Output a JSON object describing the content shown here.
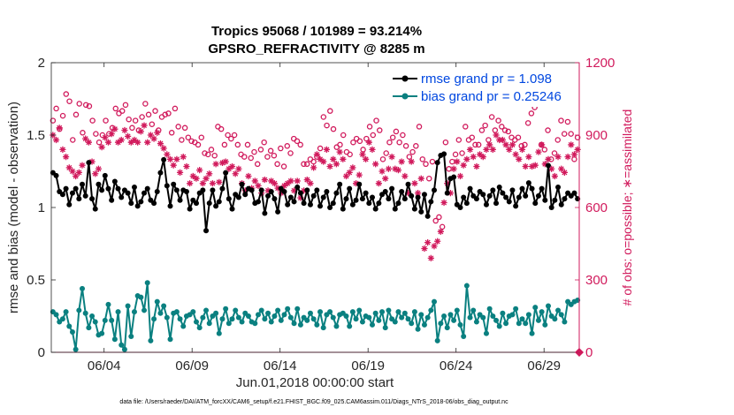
{
  "chart_data": {
    "type": "line",
    "title_line1": "Tropics 95068 / 101989 = 93.214%",
    "title_line2": "GPSRO_REFRACTIVITY @ 8285 m",
    "xlabel": "Jun.01,2018 00:00:00 start",
    "ylabel": "rmse and bias (model - observation)",
    "y2label": "# of obs: o=possible; ∗=assimilated",
    "ylim": [
      0,
      2
    ],
    "y2lim": [
      0,
      1200
    ],
    "xlim": [
      1.0,
      31.0
    ],
    "x_ticks": [
      4,
      9,
      14,
      19,
      24,
      29
    ],
    "x_tick_labels": [
      "06/04",
      "06/09",
      "06/14",
      "06/19",
      "06/24",
      "06/29"
    ],
    "y_ticks": [
      0,
      0.5,
      1,
      1.5,
      2
    ],
    "y_tick_labels": [
      "0",
      "0.5",
      "1",
      "1.5",
      "2"
    ],
    "y2_ticks": [
      0,
      300,
      600,
      900,
      1200
    ],
    "y2_tick_labels": [
      "0",
      "300",
      "600",
      "900",
      "1200"
    ],
    "footnote": "data file: /Users/raeder/DAI/ATM_forcXX/CAM6_setup/f.e21.FHIST_BGC.f09_025.CAM6assim.011/Diags_NTrS_2018-06/obs_diag_output.nc",
    "colors": {
      "rmse": "#000000",
      "bias": "#0a8080",
      "obs": "#d11a5c",
      "legend_text": "#0047e0"
    },
    "series": [
      {
        "name": "rmse grand pr = 1.098",
        "axis": "left",
        "values": [
          1.24,
          1.22,
          1.11,
          1.09,
          1.13,
          1.02,
          1.1,
          1.13,
          1.06,
          1.16,
          1.08,
          1.31,
          1.06,
          0.99,
          1.16,
          1.12,
          1.22,
          1.13,
          1.05,
          1.18,
          1.13,
          1.07,
          1.12,
          1.1,
          1.03,
          1.14,
          1.01,
          1.04,
          1.1,
          1.13,
          1.05,
          1.03,
          1.11,
          1.24,
          1.33,
          1.15,
          1.01,
          1.16,
          1.12,
          1.05,
          1.12,
          1.11,
          0.99,
          1.05,
          1.03,
          1.1,
          1.12,
          0.84,
          1.03,
          1.12,
          1.01,
          1.04,
          1.13,
          1.24,
          1.06,
          0.99,
          1.09,
          1.07,
          1.16,
          1.09,
          1.13,
          1.12,
          1.03,
          1.04,
          1.12,
          0.96,
          1.08,
          1.11,
          1.06,
          0.97,
          1.13,
          1.11,
          1.02,
          1.07,
          1.04,
          1.14,
          1.1,
          1.03,
          1.12,
          1.02,
          1.08,
          1.12,
          1.01,
          1.07,
          1.11,
          1.0,
          1.03,
          1.1,
          1.16,
          0.99,
          1.06,
          1.13,
          1.02,
          1.05,
          1.16,
          1.06,
          1.1,
          1.03,
          1.07,
          0.99,
          1.03,
          1.09,
          1.11,
          1.06,
          1.13,
          0.99,
          1.03,
          1.11,
          1.06,
          1.16,
          1.08,
          0.99,
          1.07,
          0.97,
          1.09,
          0.94,
          1.04,
          1.12,
          1.31,
          1.36,
          1.37,
          1.1,
          1.2,
          1.21,
          1.02,
          1.0,
          1.07,
          1.03,
          1.13,
          1.08,
          1.06,
          1.11,
          1.09,
          1.02,
          1.08,
          1.12,
          1.03,
          1.14,
          1.1,
          1.07,
          1.04,
          1.12,
          1.01,
          1.07,
          1.13,
          1.08,
          1.17,
          1.13,
          1.03,
          1.08,
          1.13,
          1.05,
          1.29,
          1.0,
          1.05,
          1.14,
          1.02,
          1.06,
          1.1,
          1.08,
          1.1,
          1.06
        ]
      },
      {
        "name": "bias grand pr = 0.25246",
        "axis": "left",
        "values": [
          0.28,
          0.26,
          0.21,
          0.23,
          0.28,
          0.18,
          0.14,
          0.02,
          0.29,
          0.44,
          0.27,
          0.17,
          0.25,
          0.21,
          0.12,
          0.13,
          0.22,
          0.33,
          0.22,
          0.09,
          0.28,
          0.05,
          0.02,
          0.32,
          0.11,
          0.28,
          0.39,
          0.38,
          0.29,
          0.48,
          0.08,
          0.23,
          0.35,
          0.27,
          0.32,
          0.24,
          0.09,
          0.27,
          0.28,
          0.23,
          0.18,
          0.25,
          0.26,
          0.28,
          0.21,
          0.17,
          0.24,
          0.29,
          0.2,
          0.25,
          0.27,
          0.13,
          0.23,
          0.3,
          0.2,
          0.23,
          0.29,
          0.24,
          0.21,
          0.27,
          0.25,
          0.21,
          0.2,
          0.26,
          0.29,
          0.23,
          0.27,
          0.21,
          0.25,
          0.29,
          0.22,
          0.26,
          0.3,
          0.24,
          0.2,
          0.3,
          0.19,
          0.24,
          0.22,
          0.27,
          0.23,
          0.19,
          0.28,
          0.17,
          0.26,
          0.28,
          0.24,
          0.18,
          0.26,
          0.27,
          0.25,
          0.18,
          0.28,
          0.23,
          0.29,
          0.21,
          0.25,
          0.24,
          0.19,
          0.27,
          0.22,
          0.28,
          0.17,
          0.29,
          0.23,
          0.21,
          0.28,
          0.24,
          0.27,
          0.23,
          0.2,
          0.28,
          0.16,
          0.26,
          0.19,
          0.24,
          0.29,
          0.35,
          0.08,
          0.2,
          0.25,
          0.17,
          0.26,
          0.22,
          0.29,
          0.19,
          0.11,
          0.46,
          0.24,
          0.29,
          0.21,
          0.26,
          0.24,
          0.13,
          0.3,
          0.25,
          0.22,
          0.18,
          0.27,
          0.2,
          0.25,
          0.26,
          0.3,
          0.2,
          0.23,
          0.2,
          0.26,
          0.13,
          0.31,
          0.22,
          0.28,
          0.19,
          0.32,
          0.25,
          0.23,
          0.29,
          0.26,
          0.21,
          0.35,
          0.33,
          0.35,
          0.36
        ]
      },
      {
        "name": "obs possible",
        "axis": "right",
        "marker": "circle",
        "values": [
          960,
          1010,
          925,
          980,
          1070,
          1040,
          880,
          985,
          1030,
          910,
          1025,
          1020,
          960,
          905,
          870,
          900,
          960,
          905,
          930,
          1010,
          990,
          1000,
          1025,
          965,
          930,
          960,
          920,
          975,
          1030,
          985,
          945,
          1000,
          920,
          975,
          985,
          990,
          910,
          1010,
          935,
          880,
          930,
          890,
          875,
          870,
          860,
          890,
          825,
          820,
          840,
          815,
          935,
          925,
          860,
          900,
          885,
          900,
          860,
          820,
          810,
          860,
          805,
          830,
          780,
          840,
          870,
          810,
          835,
          815,
          780,
          845,
          770,
          855,
          825,
          885,
          875,
          860,
          780,
          780,
          800,
          790,
          810,
          845,
          975,
          940,
          1000,
          925,
          850,
          860,
          900,
          830,
          820,
          870,
          885,
          875,
          840,
          885,
          935,
          900,
          960,
          920,
          800,
          825,
          870,
          890,
          915,
          870,
          900,
          855,
          810,
          830,
          855,
          935,
          800,
          780,
          720,
          790,
          545,
          560,
          520,
          870,
          760,
          790,
          820,
          880,
          825,
          935,
          880,
          890,
          860,
          860,
          920,
          940,
          880,
          975,
          920,
          960,
          935,
          920,
          915,
          890,
          880,
          890,
          855,
          860,
          950,
          990,
          1015,
          1030,
          860,
          840,
          920,
          800,
          825,
          880,
          960,
          905,
          955,
          905,
          800,
          890
        ]
      },
      {
        "name": "obs assimilated",
        "axis": "right",
        "marker": "asterisk",
        "values": [
          900,
          880,
          930,
          840,
          810,
          765,
          750,
          730,
          745,
          775,
          885,
          870,
          790,
          740,
          760,
          850,
          890,
          870,
          905,
          925,
          870,
          880,
          920,
          895,
          870,
          880,
          870,
          915,
          940,
          870,
          900,
          885,
          910,
          865,
          845,
          820,
          800,
          775,
          800,
          745,
          810,
          770,
          700,
          730,
          720,
          755,
          700,
          720,
          740,
          700,
          780,
          705,
          785,
          790,
          760,
          770,
          740,
          760,
          700,
          670,
          730,
          680,
          710,
          690,
          660,
          715,
          670,
          710,
          700,
          680,
          660,
          690,
          700,
          710,
          670,
          710,
          640,
          670,
          715,
          700,
          765,
          820,
          800,
          790,
          840,
          770,
          800,
          780,
          830,
          800,
          730,
          745,
          765,
          700,
          735,
          820,
          800,
          870,
          840,
          780,
          700,
          750,
          720,
          760,
          810,
          760,
          755,
          790,
          730,
          660,
          790,
          700,
          660,
          720,
          430,
          455,
          390,
          440,
          460,
          500,
          620,
          700,
          660,
          760,
          790,
          730,
          775,
          800,
          840,
          810,
          770,
          820,
          810,
          840,
          860,
          840,
          900,
          880,
          880,
          860,
          840,
          860,
          820,
          800,
          840,
          770,
          810,
          770,
          775,
          830,
          860,
          780,
          800,
          760,
          730,
          810,
          760,
          745,
          810,
          860,
          820,
          840
        ]
      }
    ]
  }
}
